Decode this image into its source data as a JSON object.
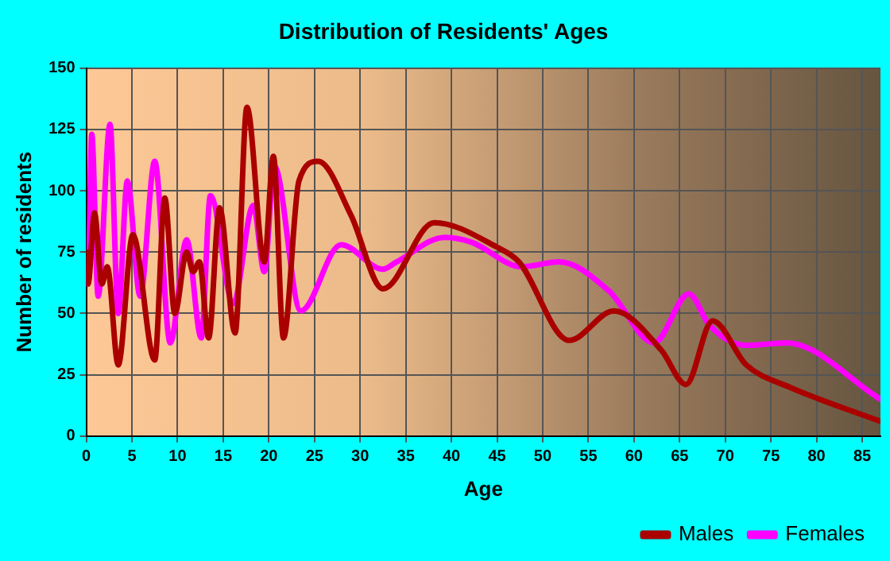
{
  "chart_data": {
    "type": "line",
    "title": "Distribution of Residents' Ages",
    "xlabel": "Age",
    "ylabel": "Number of residents",
    "xlim": [
      0,
      87
    ],
    "xticks": [
      0,
      5,
      10,
      15,
      20,
      25,
      30,
      35,
      40,
      45,
      50,
      55,
      60,
      65,
      70,
      75,
      80,
      85
    ],
    "ylim": [
      0,
      150
    ],
    "yticks": [
      0,
      25,
      50,
      75,
      100,
      125,
      150
    ],
    "grid": true,
    "legend": "bottom right",
    "marker": "none",
    "line_style": "solid",
    "series": [
      {
        "name": "Males",
        "color": "#aa0000",
        "x": [
          0,
          0.2,
          0.9,
          1.7,
          2.3,
          3.5,
          5.1,
          7.5,
          8.6,
          9.7,
          11,
          11.7,
          12.4,
          13.4,
          14.6,
          16.3,
          17.6,
          19.5,
          20.5,
          21.6,
          23.3,
          25.4,
          29,
          32.5,
          38.1,
          45,
          47.4,
          52.9,
          57.8,
          63,
          65.7,
          68.6,
          72.3,
          77,
          87
        ],
        "values": [
          75,
          62,
          91,
          62,
          69,
          29,
          82,
          31,
          97,
          50,
          75,
          67,
          71,
          40,
          93,
          42,
          134,
          71,
          114,
          40,
          104,
          112,
          90,
          60,
          87,
          77,
          71,
          39,
          51,
          35,
          21,
          47,
          29,
          20,
          6
        ]
      },
      {
        "name": "Females",
        "color": "#ff00ff",
        "x": [
          0,
          0.2,
          0.6,
          1.3,
          2.6,
          3.5,
          4.5,
          5.9,
          7.5,
          9.2,
          11,
          12.6,
          13.6,
          16.1,
          18.3,
          19.5,
          20.6,
          23.5,
          27.9,
          32.5,
          34,
          39.3,
          42.2,
          47.7,
          51.8,
          57.3,
          62.2,
          66,
          68.3,
          72.3,
          76.7,
          87
        ],
        "values": [
          62,
          62,
          123,
          57,
          127,
          50,
          104,
          57,
          112,
          38,
          80,
          40,
          98,
          54,
          94,
          67,
          110,
          51,
          78,
          68,
          71,
          81,
          79,
          69,
          71,
          59,
          38,
          58,
          45,
          37,
          38,
          15
        ]
      }
    ]
  }
}
